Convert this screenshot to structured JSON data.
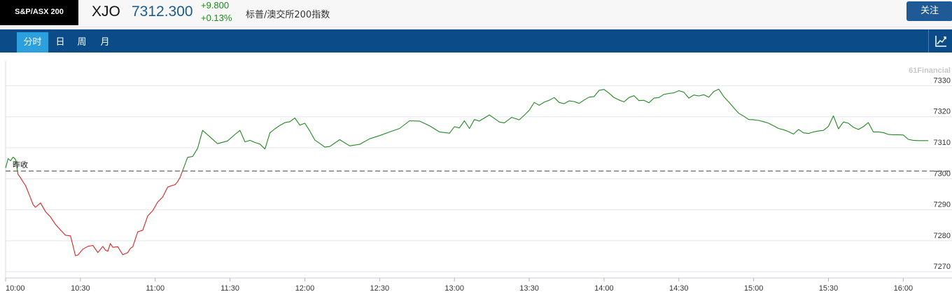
{
  "header": {
    "badge": "S&P/ASX 200",
    "ticker": "XJO",
    "price": "7312.300",
    "change": "+9.800",
    "change_pct": "+0.13%",
    "name": "标普/澳交所200指数",
    "follow_label": "关注"
  },
  "tabs": [
    "分时",
    "日",
    "周",
    "月"
  ],
  "chart_icon": "line-chart-icon",
  "colors": {
    "up": "#228822",
    "down": "#dd2222",
    "accent": "#0b4c88",
    "active_tab": "#2ba0dc"
  },
  "chart_data": {
    "type": "line",
    "watermark": "61Financial",
    "prev_close": 7302.5,
    "prev_close_label": "昨收",
    "ylim": [
      7268,
      7338
    ],
    "yticks": [
      "7270",
      "7280",
      "7290",
      "7300",
      "7310",
      "7320",
      "7330"
    ],
    "xticks": [
      "10:00",
      "10:30",
      "11:00",
      "11:30",
      "12:00",
      "12:30",
      "13:00",
      "13:30",
      "14:00",
      "14:30",
      "15:00",
      "15:30",
      "16:00"
    ],
    "session": [
      "10:00",
      "16:10"
    ],
    "series": [
      {
        "x": [
          "10:00",
          "10:01",
          "10:02",
          "10:03",
          "10:04",
          "10:05",
          "10:06",
          "10:07",
          "10:08",
          "10:09",
          "10:10",
          "10:11",
          "10:12",
          "10:14",
          "10:16",
          "10:18",
          "10:20",
          "10:22",
          "10:24",
          "10:26",
          "10:27",
          "10:28",
          "10:29",
          "10:31",
          "10:33",
          "10:35",
          "10:37",
          "10:39",
          "10:40",
          "10:41",
          "10:42",
          "10:43",
          "10:45",
          "10:47",
          "10:49",
          "10:50",
          "10:51",
          "10:53",
          "10:55",
          "10:57",
          "10:59",
          "11:01",
          "11:03",
          "11:05",
          "11:07",
          "11:08",
          "11:09",
          "11:10",
          "11:11",
          "11:13",
          "11:15",
          "11:17",
          "11:19",
          "11:21",
          "11:25",
          "11:29",
          "11:32",
          "11:34",
          "11:36",
          "11:38",
          "11:40",
          "11:42",
          "11:44",
          "11:46",
          "11:48",
          "11:50",
          "11:52",
          "11:54",
          "11:56",
          "11:58",
          "12:00",
          "12:02",
          "12:04",
          "12:06",
          "12:08",
          "12:10",
          "12:14",
          "12:18",
          "12:22",
          "12:26",
          "12:30",
          "12:34",
          "12:38",
          "12:42",
          "12:46",
          "12:50",
          "12:54",
          "12:58",
          "13:00",
          "13:02",
          "13:04",
          "13:06",
          "13:08",
          "13:10",
          "13:14",
          "13:18",
          "13:20",
          "13:23",
          "13:26",
          "13:28",
          "13:30",
          "13:32",
          "13:34",
          "13:36",
          "13:38",
          "13:40",
          "13:42",
          "13:44",
          "13:46",
          "13:48",
          "13:50",
          "13:52",
          "13:54",
          "13:56",
          "13:58",
          "14:00",
          "14:02",
          "14:04",
          "14:06",
          "14:08",
          "14:10",
          "14:12",
          "14:14",
          "14:16",
          "14:18",
          "14:20",
          "14:22",
          "14:24",
          "14:26",
          "14:28",
          "14:30",
          "14:32",
          "14:34",
          "14:36",
          "14:38",
          "14:40",
          "14:42",
          "14:44",
          "14:46",
          "14:48",
          "14:50",
          "14:52",
          "14:54",
          "14:56",
          "14:58",
          "15:00",
          "15:02",
          "15:04",
          "15:06",
          "15:08",
          "15:10",
          "15:12",
          "15:14",
          "15:16",
          "15:18",
          "15:20",
          "15:22",
          "15:24",
          "15:26",
          "15:28",
          "15:30",
          "15:32",
          "15:34",
          "15:36",
          "15:38",
          "15:40",
          "15:42",
          "15:44",
          "15:46",
          "15:48",
          "15:50",
          "15:52",
          "15:54",
          "15:56",
          "15:58",
          "16:00",
          "16:02",
          "16:04",
          "16:06",
          "16:08",
          "16:10"
        ],
        "y": [
          7303.5,
          7306.5,
          7305.8,
          7307,
          7306.2,
          7301.4,
          7300.3,
          7299,
          7297.8,
          7295.8,
          7293.8,
          7291.7,
          7290.8,
          7292.2,
          7289.4,
          7287.7,
          7285.3,
          7283.5,
          7281.8,
          7281.6,
          7278.5,
          7275.2,
          7275.4,
          7277.3,
          7278.2,
          7278.5,
          7276.2,
          7278.2,
          7277,
          7276.6,
          7279.1,
          7277.9,
          7278.1,
          7275.5,
          7276.2,
          7277.5,
          7278.1,
          7282.9,
          7283.4,
          7288,
          7289.7,
          7292.5,
          7294.1,
          7297.3,
          7297.9,
          7298.1,
          7299.1,
          7300.5,
          7302.6,
          7306.9,
          7307.2,
          7309.8,
          7315.6,
          7314.2,
          7311.3,
          7312.2,
          7314.3,
          7315.6,
          7311.9,
          7312.4,
          7311.7,
          7311.2,
          7309.6,
          7314.8,
          7316.1,
          7317.2,
          7318.1,
          7318.4,
          7319.6,
          7317.3,
          7317.9,
          7315.4,
          7312.5,
          7311.4,
          7310.2,
          7310.4,
          7312.6,
          7310.6,
          7311.1,
          7312.9,
          7313.9,
          7315.1,
          7316.2,
          7318.7,
          7318.6,
          7317.1,
          7315.1,
          7314.7,
          7316.8,
          7316.4,
          7318.7,
          7316.2,
          7319.1,
          7318.6,
          7320.6,
          7318.3,
          7318,
          7319.8,
          7319,
          7320.5,
          7322.1,
          7324.6,
          7323.7,
          7324.7,
          7325.3,
          7326.2,
          7324.6,
          7324.2,
          7325.1,
          7324.9,
          7324.3,
          7325.4,
          7326.3,
          7326.5,
          7328.5,
          7328.8,
          7327.6,
          7326.2,
          7325.4,
          7324.8,
          7326.2,
          7326.8,
          7325.2,
          7325.3,
          7324.5,
          7326,
          7326.2,
          7327.2,
          7327.5,
          7327.7,
          7328.4,
          7327.9,
          7326,
          7327,
          7326.7,
          7327.1,
          7326.3,
          7328.1,
          7328.9,
          7326.5,
          7324.8,
          7322.9,
          7321.1,
          7320.2,
          7319.1,
          7319,
          7318.8,
          7318.4,
          7317.9,
          7317.1,
          7316.2,
          7315.8,
          7315.2,
          7314.4,
          7315.9,
          7314.8,
          7314.6,
          7315.1,
          7315.4,
          7315.6,
          7316.9,
          7320.3,
          7316.1,
          7318.3,
          7317.9,
          7316.6,
          7315.9,
          7316.8,
          7318.1,
          7315.1,
          7315.1,
          7314.9,
          7314.3,
          7314.2,
          7314.2,
          7314.1,
          7312.7,
          7312.4,
          7312.3,
          7312.3,
          7312.3
        ]
      }
    ]
  }
}
